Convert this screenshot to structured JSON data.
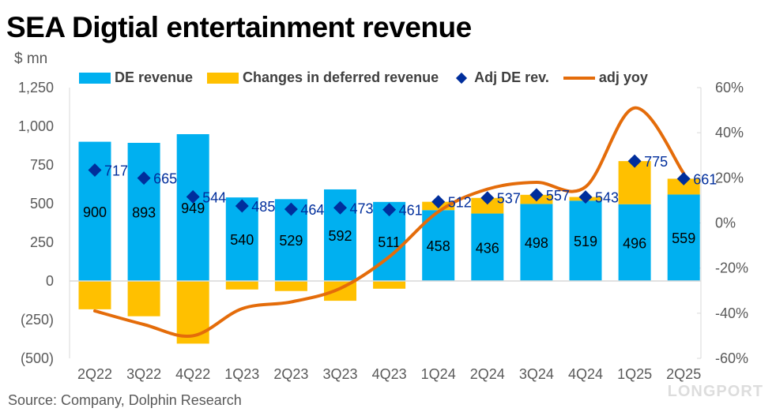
{
  "title": "SEA Digtial entertainment revenue",
  "unit_label": "$ mn",
  "source": "Source: Company, Dolphin Research",
  "watermark": "LONGPORT",
  "colors": {
    "de_revenue": "#00B0F0",
    "deferred": "#FFC000",
    "adj": "#002E9C",
    "yoy": "#E46C0A"
  },
  "legend": [
    "DE revenue",
    "Changes in deferred revenue",
    "Adj DE rev.",
    "adj yoy"
  ],
  "chart_data": {
    "type": "bar",
    "stacked": true,
    "categories": [
      "2Q22",
      "3Q22",
      "4Q22",
      "1Q23",
      "2Q23",
      "3Q23",
      "4Q23",
      "1Q24",
      "2Q24",
      "3Q24",
      "4Q24",
      "1Q25",
      "2Q25"
    ],
    "series": [
      {
        "name": "DE revenue",
        "type": "bar",
        "axis": "left",
        "values": [
          900,
          893,
          949,
          540,
          529,
          592,
          511,
          458,
          436,
          498,
          519,
          496,
          559
        ]
      },
      {
        "name": "Changes in deferred revenue",
        "type": "bar",
        "axis": "left",
        "values": [
          -183,
          -228,
          -405,
          -55,
          -65,
          -128,
          -50,
          54,
          101,
          59,
          24,
          279,
          102
        ]
      },
      {
        "name": "Adj DE rev.",
        "type": "scatter",
        "axis": "left",
        "values": [
          717,
          665,
          544,
          485,
          464,
          473,
          461,
          512,
          537,
          557,
          543,
          775,
          661
        ]
      },
      {
        "name": "adj yoy",
        "type": "line",
        "axis": "right",
        "values": [
          -39,
          -45,
          -50,
          -38,
          -35,
          -29,
          -15,
          5,
          15,
          18,
          16,
          51,
          22
        ]
      }
    ],
    "y_left": {
      "ticks": [
        "(500)",
        "(250)",
        "0",
        "250",
        "500",
        "750",
        "1,000",
        "1,250"
      ],
      "range": [
        -500,
        1250
      ]
    },
    "y_right": {
      "ticks": [
        "-60%",
        "-40%",
        "-20%",
        "0%",
        "20%",
        "40%",
        "60%"
      ],
      "range": [
        -60,
        60
      ],
      "unit": "%"
    },
    "legend_position": "top",
    "grid": false
  }
}
